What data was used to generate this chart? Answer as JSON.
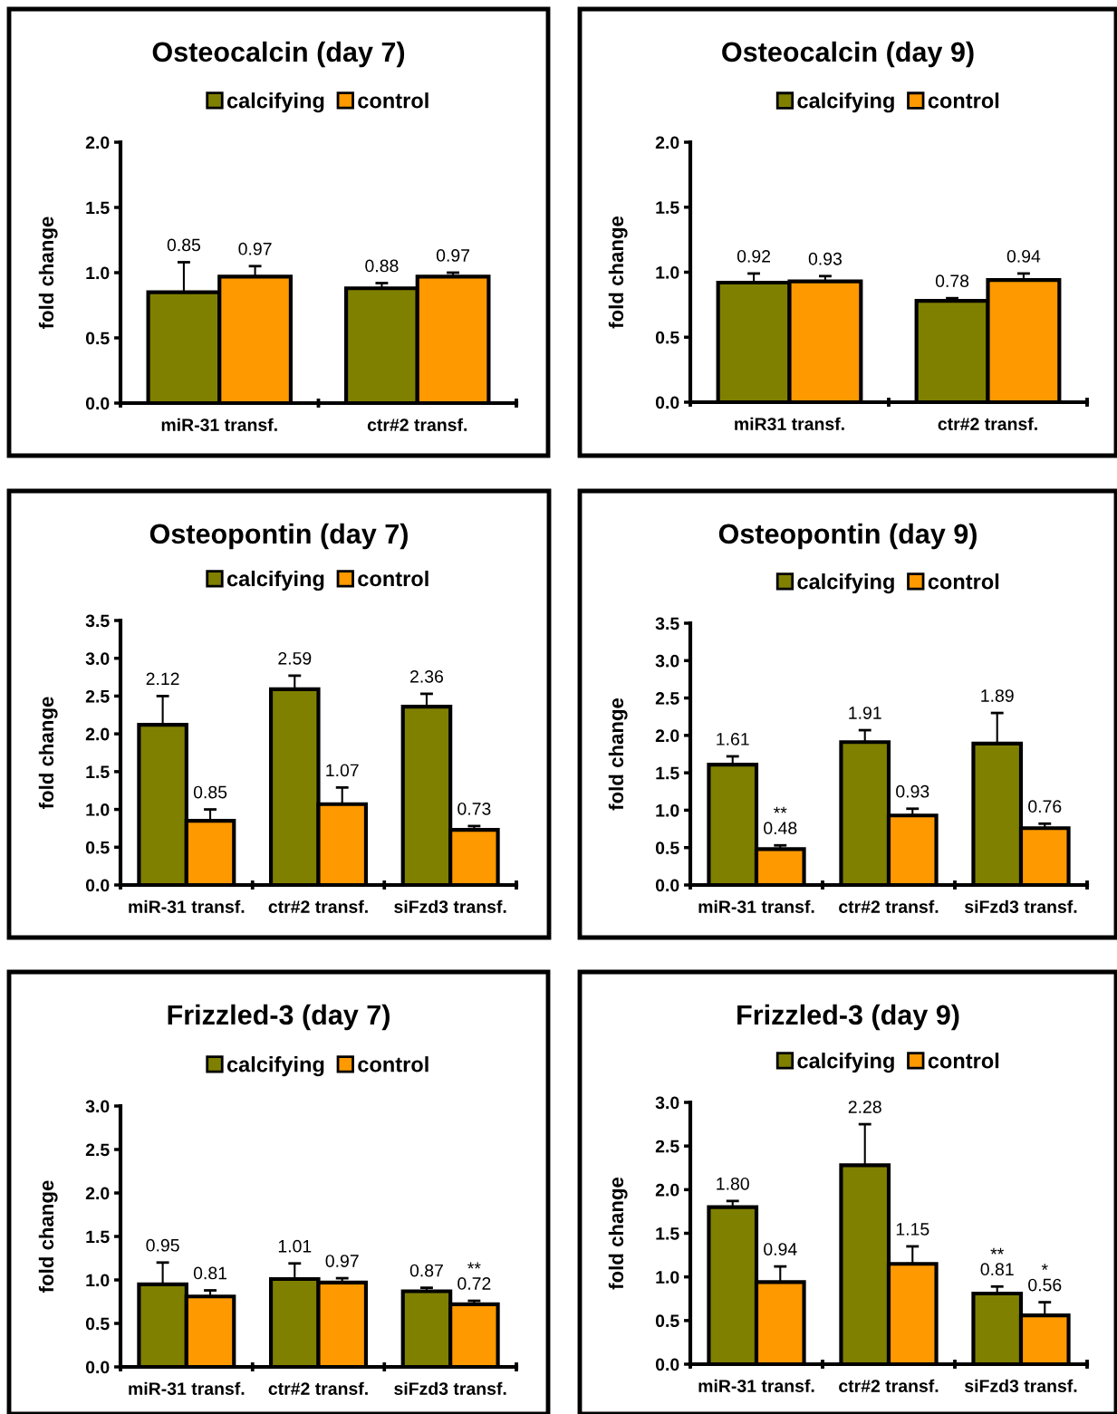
{
  "chart_data": [
    {
      "type": "bar",
      "title": "Osteocalcin (day 7)",
      "ylabel": "fold change",
      "categories": [
        "miR-31 transf.",
        "ctr#2 transf."
      ],
      "ylim": [
        0,
        2
      ],
      "yticks": [
        {
          "value": 0,
          "label": "0.0"
        },
        {
          "value": 0.5,
          "label": "0.5"
        },
        {
          "value": 1,
          "label": "1.0"
        },
        {
          "value": 1.5,
          "label": "1.5"
        },
        {
          "value": 2,
          "label": "2.0"
        }
      ],
      "legend": "top",
      "grid": false,
      "series": [
        {
          "name": "calcifying",
          "color": "#808000",
          "values": [
            0.85,
            0.88
          ],
          "errors": [
            [
              0.85,
              1.08
            ],
            [
              0.88,
              0.92
            ]
          ],
          "value_labels": [
            "0.85",
            "0.88"
          ]
        },
        {
          "name": "control",
          "color": "#ff9900",
          "values": [
            0.97,
            0.97
          ],
          "errors": [
            [
              0.97,
              1.05
            ],
            [
              0.97,
              1.0
            ]
          ],
          "value_labels": [
            "0.97",
            "0.97"
          ]
        }
      ]
    },
    {
      "type": "bar",
      "title": "Osteocalcin (day 9)",
      "ylabel": "fold change",
      "categories": [
        "miR31 transf.",
        "ctr#2 transf."
      ],
      "ylim": [
        0,
        2
      ],
      "yticks": [
        {
          "value": 0,
          "label": "0.0"
        },
        {
          "value": 0.5,
          "label": "0.5"
        },
        {
          "value": 1,
          "label": "1.0"
        },
        {
          "value": 1.5,
          "label": "1.5"
        },
        {
          "value": 2,
          "label": "2.0"
        }
      ],
      "legend": "top",
      "grid": false,
      "series": [
        {
          "name": "calcifying",
          "color": "#808000",
          "values": [
            0.92,
            0.78
          ],
          "errors": [
            [
              0.92,
              0.99
            ],
            [
              0.78,
              0.8
            ]
          ],
          "value_labels": [
            "0.92",
            "0.78"
          ]
        },
        {
          "name": "control",
          "color": "#ff9900",
          "values": [
            0.93,
            0.94
          ],
          "errors": [
            [
              0.93,
              0.97
            ],
            [
              0.94,
              0.99
            ]
          ],
          "value_labels": [
            "0.93",
            "0.94"
          ]
        }
      ]
    },
    {
      "type": "bar",
      "title": "Osteopontin (day 7)",
      "ylabel": "fold change",
      "categories": [
        "miR-31 transf.",
        "ctr#2 transf.",
        "siFzd3 transf."
      ],
      "ylim": [
        0,
        3.5
      ],
      "yticks": [
        {
          "value": 0,
          "label": "0.0"
        },
        {
          "value": 0.5,
          "label": "0.5"
        },
        {
          "value": 1,
          "label": "1.0"
        },
        {
          "value": 1.5,
          "label": "1.5"
        },
        {
          "value": 2,
          "label": "2.0"
        },
        {
          "value": 2.5,
          "label": "2.5"
        },
        {
          "value": 3,
          "label": "3.0"
        },
        {
          "value": 3.5,
          "label": "3.5"
        }
      ],
      "legend": "top",
      "grid": false,
      "series": [
        {
          "name": "calcifying",
          "color": "#808000",
          "values": [
            2.12,
            2.59,
            2.36
          ],
          "errors": [
            [
              2.12,
              2.5
            ],
            [
              2.59,
              2.77
            ],
            [
              2.36,
              2.53
            ]
          ],
          "value_labels": [
            "2.12",
            "2.59",
            "2.36"
          ]
        },
        {
          "name": "control",
          "color": "#ff9900",
          "values": [
            0.85,
            1.07,
            0.73
          ],
          "errors": [
            [
              0.85,
              1.0
            ],
            [
              1.07,
              1.29
            ],
            [
              0.73,
              0.78
            ]
          ],
          "value_labels": [
            "0.85",
            "1.07",
            "0.73"
          ]
        }
      ]
    },
    {
      "type": "bar",
      "title": "Osteopontin (day 9)",
      "ylabel": "fold change",
      "categories": [
        "miR-31 transf.",
        "ctr#2 transf.",
        "siFzd3 transf."
      ],
      "ylim": [
        0,
        3.5
      ],
      "yticks": [
        {
          "value": 0,
          "label": "0.0"
        },
        {
          "value": 0.5,
          "label": "0.5"
        },
        {
          "value": 1,
          "label": "1.0"
        },
        {
          "value": 1.5,
          "label": "1.5"
        },
        {
          "value": 2,
          "label": "2.0"
        },
        {
          "value": 2.5,
          "label": "2.5"
        },
        {
          "value": 3,
          "label": "3.0"
        },
        {
          "value": 3.5,
          "label": "3.5"
        }
      ],
      "legend": "top",
      "grid": false,
      "series": [
        {
          "name": "calcifying",
          "color": "#808000",
          "values": [
            1.61,
            1.91,
            1.89
          ],
          "errors": [
            [
              1.61,
              1.72
            ],
            [
              1.91,
              2.07
            ],
            [
              1.89,
              2.3
            ]
          ],
          "value_labels": [
            "1.61",
            "1.91",
            "1.89"
          ]
        },
        {
          "name": "control",
          "color": "#ff9900",
          "values": [
            0.48,
            0.93,
            0.76
          ],
          "errors": [
            [
              0.48,
              0.53
            ],
            [
              0.93,
              1.02
            ],
            [
              0.76,
              0.82
            ]
          ],
          "value_labels": [
            "**\n0.48",
            "0.93",
            "0.76"
          ]
        }
      ]
    },
    {
      "type": "bar",
      "title": "Frizzled-3 (day 7)",
      "ylabel": "fold change",
      "categories": [
        "miR-31 transf.",
        "ctr#2 transf.",
        "siFzd3 transf."
      ],
      "ylim": [
        0,
        3
      ],
      "yticks": [
        {
          "value": 0,
          "label": "0.0"
        },
        {
          "value": 0.5,
          "label": "0.5"
        },
        {
          "value": 1,
          "label": "1.0"
        },
        {
          "value": 1.5,
          "label": "1.5"
        },
        {
          "value": 2,
          "label": "2.0"
        },
        {
          "value": 2.5,
          "label": "2.5"
        },
        {
          "value": 3,
          "label": "3.0"
        }
      ],
      "legend": "top",
      "grid": false,
      "series": [
        {
          "name": "calcifying",
          "color": "#808000",
          "values": [
            0.95,
            1.01,
            0.87
          ],
          "errors": [
            [
              0.95,
              1.2
            ],
            [
              1.01,
              1.19
            ],
            [
              0.87,
              0.91
            ]
          ],
          "value_labels": [
            "0.95",
            "1.01",
            "0.87"
          ]
        },
        {
          "name": "control",
          "color": "#ff9900",
          "values": [
            0.81,
            0.97,
            0.72
          ],
          "errors": [
            [
              0.81,
              0.88
            ],
            [
              0.97,
              1.02
            ],
            [
              0.72,
              0.76
            ]
          ],
          "value_labels": [
            "0.81",
            "0.97",
            "**\n0.72"
          ]
        }
      ]
    },
    {
      "type": "bar",
      "title": "Frizzled-3 (day 9)",
      "ylabel": "fold change",
      "categories": [
        "miR-31 transf.",
        "ctr#2 transf.",
        "siFzd3 transf."
      ],
      "ylim": [
        0,
        3
      ],
      "yticks": [
        {
          "value": 0,
          "label": "0.0"
        },
        {
          "value": 0.5,
          "label": "0.5"
        },
        {
          "value": 1,
          "label": "1.0"
        },
        {
          "value": 1.5,
          "label": "1.5"
        },
        {
          "value": 2,
          "label": "2.0"
        },
        {
          "value": 2.5,
          "label": "2.5"
        },
        {
          "value": 3,
          "label": "3.0"
        }
      ],
      "legend": "top",
      "grid": false,
      "series": [
        {
          "name": "calcifying",
          "color": "#808000",
          "values": [
            1.8,
            2.28,
            0.81
          ],
          "errors": [
            [
              1.8,
              1.87
            ],
            [
              2.28,
              2.75
            ],
            [
              0.81,
              0.89
            ]
          ],
          "value_labels": [
            "1.80",
            "2.28",
            "**\n0.81"
          ]
        },
        {
          "name": "control",
          "color": "#ff9900",
          "values": [
            0.94,
            1.15,
            0.56
          ],
          "errors": [
            [
              0.94,
              1.12
            ],
            [
              1.15,
              1.35
            ],
            [
              0.56,
              0.71
            ]
          ],
          "value_labels": [
            "0.94",
            "1.15",
            "*\n0.56"
          ]
        }
      ]
    }
  ]
}
